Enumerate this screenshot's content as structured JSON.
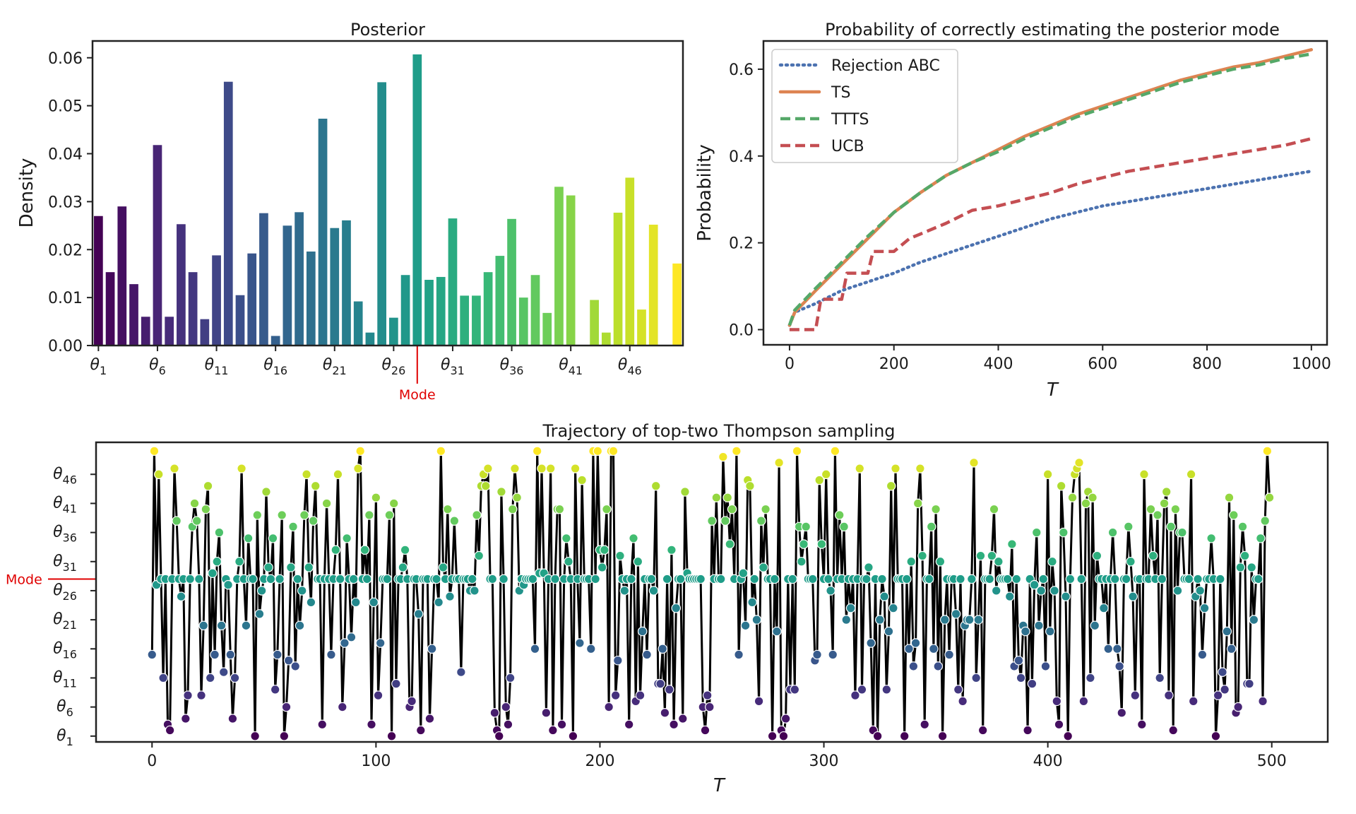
{
  "chart_data": [
    {
      "type": "bar",
      "title": "Posterior",
      "xlabel": "",
      "ylabel": "Density",
      "ylim": [
        0,
        0.0635
      ],
      "yticks": [
        "0.00",
        "0.01",
        "0.02",
        "0.03",
        "0.04",
        "0.05",
        "0.06"
      ],
      "xtick_labels": [
        "θ1",
        "θ6",
        "θ11",
        "θ16",
        "θ21",
        "θ26",
        "θ31",
        "θ36",
        "θ41",
        "θ46"
      ],
      "mode_label": "Mode",
      "mode_index": 28,
      "categories": [
        "θ1",
        "θ2",
        "θ3",
        "θ4",
        "θ5",
        "θ6",
        "θ7",
        "θ8",
        "θ9",
        "θ10",
        "θ11",
        "θ12",
        "θ13",
        "θ14",
        "θ15",
        "θ16",
        "θ17",
        "θ18",
        "θ19",
        "θ20",
        "θ21",
        "θ22",
        "θ23",
        "θ24",
        "θ25",
        "θ26",
        "θ27",
        "θ28",
        "θ29",
        "θ30",
        "θ31",
        "θ32",
        "θ33",
        "θ34",
        "θ35",
        "θ36",
        "θ37",
        "θ38",
        "θ39",
        "θ40",
        "θ41",
        "θ42",
        "θ43",
        "θ44",
        "θ45",
        "θ46",
        "θ47",
        "θ48",
        "θ49",
        "θ50"
      ],
      "values": [
        0.027,
        0.0153,
        0.029,
        0.0128,
        0.006,
        0.0418,
        0.006,
        0.0253,
        0.0153,
        0.0055,
        0.0188,
        0.055,
        0.0105,
        0.0192,
        0.0276,
        0.002,
        0.025,
        0.0278,
        0.0196,
        0.0473,
        0.0245,
        0.0261,
        0.0092,
        0.0027,
        0.0549,
        0.0058,
        0.0147,
        0.0607,
        0.0137,
        0.0143,
        0.0265,
        0.0104,
        0.0104,
        0.0153,
        0.0187,
        0.0264,
        0.01,
        0.0147,
        0.0068,
        0.0331,
        0.0313,
        0.0,
        0.0095,
        0.0027,
        0.0277,
        0.035,
        0.0075,
        0.0252,
        0.0,
        0.0171
      ],
      "colormap": "viridis"
    },
    {
      "type": "line",
      "title": "Probability of correctly estimating the posterior mode",
      "xlabel": "T",
      "ylabel": "Probability",
      "xlim": [
        -50,
        1030
      ],
      "ylim": [
        -0.035,
        0.665
      ],
      "xticks": [
        "0",
        "200",
        "400",
        "600",
        "800",
        "1000"
      ],
      "yticks": [
        "0.0",
        "0.2",
        "0.4",
        "0.6"
      ],
      "legend_position": "top-left",
      "series": [
        {
          "name": "Rejection ABC",
          "color": "#4c72b0",
          "dash": "dotted",
          "x": [
            0,
            10,
            50,
            100,
            150,
            200,
            250,
            300,
            350,
            400,
            450,
            500,
            550,
            600,
            650,
            700,
            750,
            800,
            850,
            900,
            950,
            1000
          ],
          "y": [
            0.01,
            0.04,
            0.06,
            0.09,
            0.11,
            0.13,
            0.155,
            0.175,
            0.195,
            0.215,
            0.235,
            0.255,
            0.27,
            0.285,
            0.295,
            0.305,
            0.315,
            0.325,
            0.335,
            0.345,
            0.355,
            0.365
          ]
        },
        {
          "name": "TS",
          "color": "#dd8452",
          "dash": "solid",
          "x": [
            0,
            10,
            50,
            100,
            150,
            200,
            250,
            300,
            350,
            400,
            450,
            500,
            550,
            600,
            650,
            700,
            750,
            800,
            850,
            900,
            950,
            1000
          ],
          "y": [
            0.01,
            0.04,
            0.09,
            0.15,
            0.21,
            0.27,
            0.315,
            0.355,
            0.385,
            0.415,
            0.445,
            0.47,
            0.495,
            0.515,
            0.535,
            0.555,
            0.575,
            0.59,
            0.605,
            0.615,
            0.63,
            0.645
          ]
        },
        {
          "name": "TTTS",
          "color": "#55a868",
          "dash": "dashed",
          "x": [
            0,
            10,
            50,
            100,
            150,
            200,
            250,
            300,
            350,
            400,
            450,
            500,
            550,
            600,
            650,
            700,
            750,
            800,
            850,
            900,
            950,
            1000
          ],
          "y": [
            0.01,
            0.045,
            0.095,
            0.155,
            0.215,
            0.27,
            0.315,
            0.355,
            0.385,
            0.41,
            0.44,
            0.465,
            0.49,
            0.51,
            0.53,
            0.55,
            0.57,
            0.585,
            0.6,
            0.61,
            0.625,
            0.635
          ]
        },
        {
          "name": "UCB",
          "color": "#c44e52",
          "dash": "dashed",
          "x": [
            0,
            50,
            60,
            100,
            110,
            150,
            160,
            200,
            230,
            250,
            300,
            350,
            400,
            450,
            500,
            550,
            600,
            650,
            700,
            750,
            800,
            850,
            900,
            950,
            1000
          ],
          "y": [
            0.0,
            0.0,
            0.07,
            0.07,
            0.13,
            0.13,
            0.18,
            0.18,
            0.21,
            0.22,
            0.245,
            0.275,
            0.285,
            0.3,
            0.315,
            0.335,
            0.35,
            0.365,
            0.375,
            0.385,
            0.395,
            0.405,
            0.415,
            0.425,
            0.44
          ]
        }
      ]
    },
    {
      "type": "scatter",
      "title": "Trajectory of top-two Thompson sampling",
      "xlabel": "T",
      "ylabel": "",
      "xlim": [
        -25,
        525
      ],
      "ylim": [
        0,
        51.5
      ],
      "xticks": [
        "0",
        "100",
        "200",
        "300",
        "400",
        "500"
      ],
      "ytick_labels": [
        "θ1",
        "θ6",
        "θ11",
        "θ16",
        "θ21",
        "θ26",
        "θ31",
        "θ36",
        "θ41",
        "θ46"
      ],
      "mode_label": "Mode",
      "mode_index": 28,
      "line_color": "#000000",
      "colormap": "viridis",
      "seed": 7,
      "points": 500
    }
  ]
}
